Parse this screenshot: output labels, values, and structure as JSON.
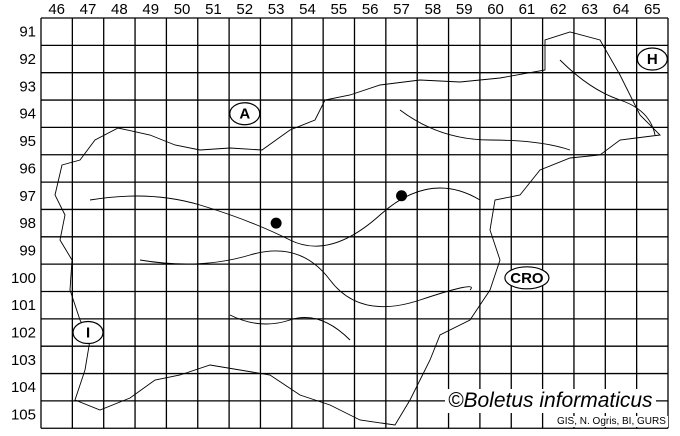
{
  "columns": [
    "46",
    "47",
    "48",
    "49",
    "50",
    "51",
    "52",
    "53",
    "54",
    "55",
    "56",
    "57",
    "58",
    "59",
    "60",
    "61",
    "62",
    "63",
    "64",
    "65"
  ],
  "rows": [
    "91",
    "92",
    "93",
    "94",
    "95",
    "96",
    "97",
    "98",
    "99",
    "100",
    "101",
    "102",
    "103",
    "104",
    "105"
  ],
  "neighbours": [
    {
      "label": "A",
      "col": "52",
      "row": "94"
    },
    {
      "label": "H",
      "col": "65",
      "row": "92"
    },
    {
      "label": "CRO",
      "col": "61",
      "row": "100"
    },
    {
      "label": "I",
      "col": "47",
      "row": "102"
    }
  ],
  "occurrences": [
    {
      "col": "53",
      "row": "98"
    },
    {
      "col": "57",
      "row": "97"
    }
  ],
  "credit": "©Boletus informaticus",
  "source": "GIS, N. Ogris, BI, GURS",
  "colors": {
    "grid": "#000000",
    "dot": "#000000"
  }
}
